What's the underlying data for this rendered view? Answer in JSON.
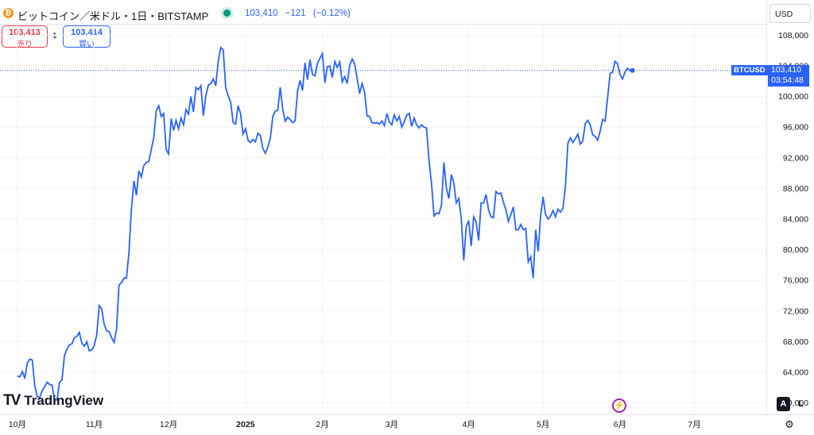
{
  "header": {
    "coin_icon": "bitcoin-icon",
    "symbol_title": "ビットコイン／米ドル・1日・BITSTAMP",
    "price": "103,410",
    "change": "−121",
    "change_pct": "(−0.12%)",
    "accent": "#2962ff"
  },
  "trade": {
    "sell_value": "103,413",
    "sell_label": "売り",
    "spread": "1",
    "buy_value": "103,414",
    "buy_label": "買い"
  },
  "currency": "USD",
  "last_price": {
    "symbol": "BTCUSD",
    "value": "103,410",
    "countdown": "03:54:48"
  },
  "brand": {
    "name": "TradingView",
    "mark": "TV"
  },
  "scale_buttons": {
    "auto": "A",
    "log": "L"
  },
  "icons": {
    "lightning": "lightning-icon",
    "settings": "gear-icon"
  },
  "chart_data": {
    "type": "line",
    "x_tick_labels": [
      "10月",
      "11月",
      "12月",
      "2025",
      "2月",
      "3月",
      "4月",
      "5月",
      "6月",
      "7月"
    ],
    "x_tick_index": [
      0,
      31,
      61,
      92,
      123,
      151,
      182,
      212,
      243,
      273
    ],
    "y_tick_labels": [
      "60,000",
      "64,000",
      "68,000",
      "72,000",
      "76,000",
      "80,000",
      "84,000",
      "88,000",
      "92,000",
      "96,000",
      "100,000",
      "104,000",
      "108,000"
    ],
    "ylim": [
      58500,
      109500
    ],
    "xlim": [
      -7,
      302
    ],
    "line_color": "#2962ff",
    "series": [
      {
        "values": [
          63500,
          63400,
          64100,
          63200,
          65200,
          65700,
          65600,
          62300,
          60800,
          60700,
          61600,
          62100,
          62700,
          62400,
          62300,
          60400,
          60400,
          62700,
          63000,
          66200,
          67000,
          67600,
          67700,
          68500,
          68700,
          69200,
          67800,
          67400,
          68000,
          66800,
          66900,
          67500,
          68900,
          72700,
          72300,
          70300,
          69400,
          69300,
          68500,
          67900,
          69600,
          75400,
          75700,
          76300,
          76300,
          79600,
          85300,
          89000,
          87100,
          90300,
          89500,
          91000,
          91400,
          91500,
          93100,
          94600,
          98100,
          98800,
          97400,
          97800,
          93100,
          92500,
          97100,
          95600,
          96900,
          95800,
          97200,
          96300,
          98300,
          97700,
          100000,
          98000,
          101200,
          100900,
          101400,
          97500,
          100100,
          101500,
          101700,
          102300,
          101400,
          104600,
          106400,
          106100,
          101200,
          100100,
          99300,
          96600,
          96400,
          98800,
          97800,
          95100,
          95800,
          94300,
          94000,
          94400,
          94100,
          95200,
          94900,
          93200,
          92600,
          93400,
          94600,
          97400,
          98100,
          98200,
          101200,
          98300,
          96800,
          97300,
          97000,
          96600,
          96800,
          100800,
          102100,
          100800,
          104400,
          102200,
          104800,
          102900,
          102700,
          104300,
          105000,
          105600,
          101800,
          103900,
          104000,
          102500,
          104600,
          103800,
          104500,
          101900,
          102600,
          101700,
          104100,
          104900,
          104300,
          102400,
          100400,
          101700,
          100600,
          97500,
          97400,
          96600,
          96500,
          96600,
          96400,
          96800,
          96200,
          97800,
          96700,
          96300,
          97600,
          96800,
          97400,
          96000,
          96700,
          97600,
          97800,
          96100,
          97200,
          96300,
          95900,
          96300,
          96000,
          95900,
          91600,
          88700,
          84400,
          84800,
          84700,
          85800,
          91400,
          88000,
          86700,
          89800,
          88700,
          86100,
          86700,
          84000,
          78600,
          83000,
          83800,
          80500,
          84300,
          83600,
          81200,
          86100,
          86100,
          87200,
          85200,
          84300,
          84200,
          87600,
          87300,
          87400,
          86200,
          85200,
          83700,
          84600,
          85600,
          82600,
          82600,
          83300,
          82600,
          82800,
          78400,
          79100,
          76300,
          82600,
          79800,
          84400,
          86900,
          84600,
          84000,
          84400,
          85100,
          84300,
          85300,
          84900,
          85400,
          88300,
          93900,
          94600,
          94000,
          94500,
          95100,
          93800,
          94200,
          96500,
          96900,
          96300,
          95000,
          94800,
          94300,
          95500,
          97000,
          96800,
          99800,
          103000,
          103200,
          104600,
          104300,
          102900,
          102300,
          103200,
          103700,
          103400,
          103410
        ]
      }
    ]
  }
}
